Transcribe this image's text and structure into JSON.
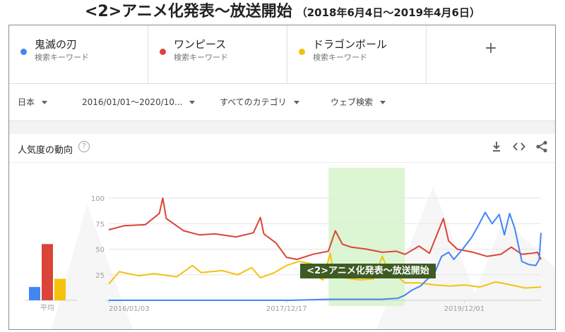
{
  "page_title": "<2>アニメ化発表〜放送開始",
  "page_subtitle": "（2018年6月4日〜2019年4月6日）",
  "terms": [
    {
      "name": "鬼滅の刃",
      "type": "検索キーワード",
      "color": "#4285f4"
    },
    {
      "name": "ワンピース",
      "type": "検索キーワード",
      "color": "#db4437"
    },
    {
      "name": "ドラゴンボール",
      "type": "検索キーワード",
      "color": "#f4c20d"
    }
  ],
  "add_term": "+",
  "filters": {
    "region": "日本",
    "period": "2016/01/01〜2020/10...",
    "category": "すべてのカテゴリ",
    "search_type": "ウェブ検索"
  },
  "panel": {
    "title": "人気度の動向",
    "help": "?",
    "icons": [
      "download-icon",
      "embed-icon",
      "share-icon"
    ]
  },
  "highlight_label": "<2>アニメ化発表〜放送開始",
  "chart_data": {
    "type": "line",
    "x_start": "2016-01-03",
    "x_end": "2020-10-04",
    "x_tick_labels": [
      "2016/01/03",
      "2017/12/17",
      "2019/12/01"
    ],
    "x_tick_dates": [
      "2016-01-03",
      "2017-12-17",
      "2019-12-01"
    ],
    "ylim": [
      0,
      100
    ],
    "y_ticks": [
      25,
      50,
      75,
      100
    ],
    "grid": true,
    "highlight_range": [
      "2018-06-04",
      "2019-04-06"
    ],
    "series": [
      {
        "name": "鬼滅の刃",
        "color": "#4285f4",
        "points": [
          [
            "2016-01-03",
            0
          ],
          [
            "2017-01-01",
            0
          ],
          [
            "2018-01-01",
            0
          ],
          [
            "2018-06-04",
            1
          ],
          [
            "2019-01-01",
            1
          ],
          [
            "2019-03-10",
            2
          ],
          [
            "2019-04-06",
            5
          ],
          [
            "2019-05-05",
            10
          ],
          [
            "2019-06-09",
            14
          ],
          [
            "2019-07-07",
            21
          ],
          [
            "2019-08-04",
            27
          ],
          [
            "2019-09-01",
            43
          ],
          [
            "2019-09-29",
            47
          ],
          [
            "2019-10-20",
            40
          ],
          [
            "2019-11-24",
            50
          ],
          [
            "2019-12-29",
            61
          ],
          [
            "2020-01-26",
            73
          ],
          [
            "2020-02-23",
            86
          ],
          [
            "2020-03-22",
            75
          ],
          [
            "2020-04-19",
            84
          ],
          [
            "2020-05-10",
            64
          ],
          [
            "2020-05-31",
            85
          ],
          [
            "2020-06-21",
            70
          ],
          [
            "2020-07-19",
            38
          ],
          [
            "2020-08-16",
            35
          ],
          [
            "2020-09-13",
            34
          ],
          [
            "2020-09-27",
            40
          ],
          [
            "2020-10-04",
            66
          ]
        ]
      },
      {
        "name": "ワンピース",
        "color": "#db4437",
        "points": [
          [
            "2016-01-03",
            69
          ],
          [
            "2016-03-06",
            73
          ],
          [
            "2016-05-29",
            74
          ],
          [
            "2016-07-24",
            85
          ],
          [
            "2016-08-07",
            100
          ],
          [
            "2016-08-21",
            80
          ],
          [
            "2016-10-30",
            68
          ],
          [
            "2017-01-01",
            64
          ],
          [
            "2017-03-05",
            65
          ],
          [
            "2017-05-28",
            62
          ],
          [
            "2017-08-06",
            66
          ],
          [
            "2017-09-03",
            81
          ],
          [
            "2017-09-17",
            65
          ],
          [
            "2017-11-05",
            56
          ],
          [
            "2017-12-17",
            42
          ],
          [
            "2018-01-28",
            40
          ],
          [
            "2018-04-01",
            45
          ],
          [
            "2018-06-03",
            48
          ],
          [
            "2018-07-01",
            68
          ],
          [
            "2018-07-29",
            55
          ],
          [
            "2018-09-02",
            52
          ],
          [
            "2018-11-04",
            50
          ],
          [
            "2019-01-06",
            47
          ],
          [
            "2019-03-03",
            48
          ],
          [
            "2019-04-07",
            45
          ],
          [
            "2019-06-02",
            53
          ],
          [
            "2019-07-14",
            46
          ],
          [
            "2019-09-08",
            80
          ],
          [
            "2019-09-29",
            58
          ],
          [
            "2019-11-03",
            50
          ],
          [
            "2020-01-05",
            47
          ],
          [
            "2020-03-01",
            43
          ],
          [
            "2020-04-26",
            45
          ],
          [
            "2020-06-07",
            52
          ],
          [
            "2020-07-19",
            45
          ],
          [
            "2020-08-30",
            46
          ],
          [
            "2020-09-20",
            47
          ],
          [
            "2020-10-04",
            40
          ]
        ]
      },
      {
        "name": "ドラゴンボール",
        "color": "#f4c20d",
        "points": [
          [
            "2016-01-03",
            16
          ],
          [
            "2016-02-14",
            28
          ],
          [
            "2016-05-01",
            24
          ],
          [
            "2016-07-03",
            26
          ],
          [
            "2016-10-02",
            23
          ],
          [
            "2016-12-04",
            34
          ],
          [
            "2017-01-08",
            27
          ],
          [
            "2017-04-02",
            29
          ],
          [
            "2017-06-04",
            25
          ],
          [
            "2017-07-30",
            32
          ],
          [
            "2017-09-03",
            22
          ],
          [
            "2017-10-29",
            27
          ],
          [
            "2017-12-17",
            34
          ],
          [
            "2018-02-04",
            38
          ],
          [
            "2018-03-25",
            36
          ],
          [
            "2018-04-08",
            24
          ],
          [
            "2018-05-13",
            20
          ],
          [
            "2018-06-10",
            46
          ],
          [
            "2018-06-24",
            27
          ],
          [
            "2018-08-05",
            22
          ],
          [
            "2018-10-07",
            20
          ],
          [
            "2018-12-02",
            21
          ],
          [
            "2019-01-06",
            43
          ],
          [
            "2019-01-27",
            30
          ],
          [
            "2019-03-03",
            24
          ],
          [
            "2019-04-07",
            17
          ],
          [
            "2019-06-02",
            17
          ],
          [
            "2019-08-04",
            15
          ],
          [
            "2019-10-06",
            14
          ],
          [
            "2019-12-01",
            15
          ],
          [
            "2020-02-02",
            13
          ],
          [
            "2020-04-05",
            18
          ],
          [
            "2020-06-07",
            15
          ],
          [
            "2020-08-02",
            12
          ],
          [
            "2020-10-04",
            13
          ]
        ]
      }
    ],
    "average": {
      "label": "平均",
      "values": [
        13,
        55,
        21
      ]
    }
  }
}
